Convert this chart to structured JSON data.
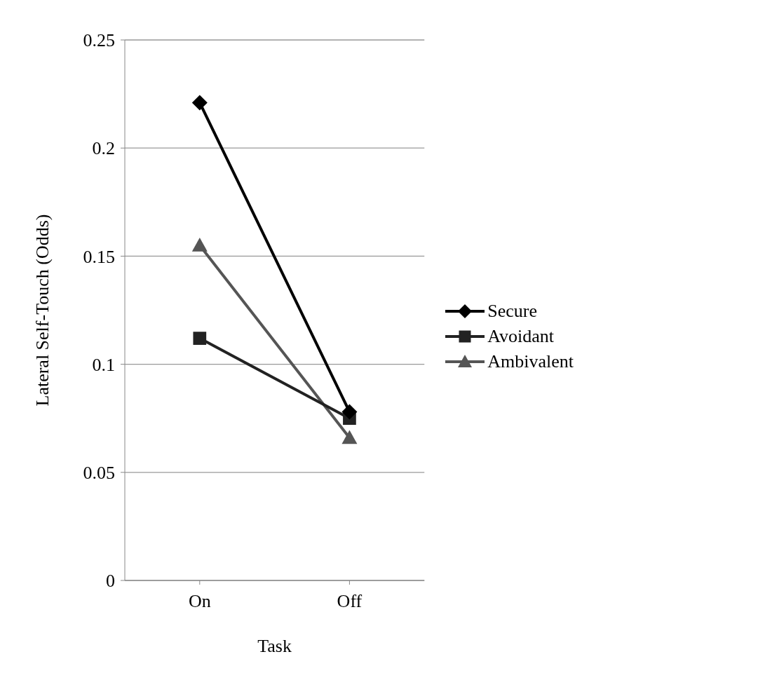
{
  "chart_data": {
    "type": "line",
    "xlabel": "Task",
    "ylabel": "Lateral Self-Touch (Odds)",
    "categories": [
      "On",
      "Off"
    ],
    "series": [
      {
        "name": "Secure",
        "color": "#000000",
        "marker": "diamond",
        "values": [
          0.221,
          0.078
        ]
      },
      {
        "name": "Avoidant",
        "color": "#222222",
        "marker": "square",
        "values": [
          0.112,
          0.075
        ]
      },
      {
        "name": "Ambivalent",
        "color": "#555555",
        "marker": "triangle",
        "values": [
          0.155,
          0.066
        ]
      }
    ],
    "ylim": [
      0,
      0.25
    ],
    "yticks": [
      0,
      {
        "value": 0.05,
        "label": "0.05"
      },
      {
        "value": 0.1,
        "label": "0.1"
      },
      {
        "value": 0.15,
        "label": "0.15"
      },
      {
        "value": 0.2,
        "label": "0.2"
      },
      {
        "value": 0.25,
        "label": "0.25"
      }
    ],
    "grid": "y",
    "legend": "right",
    "line_style": "solid"
  }
}
